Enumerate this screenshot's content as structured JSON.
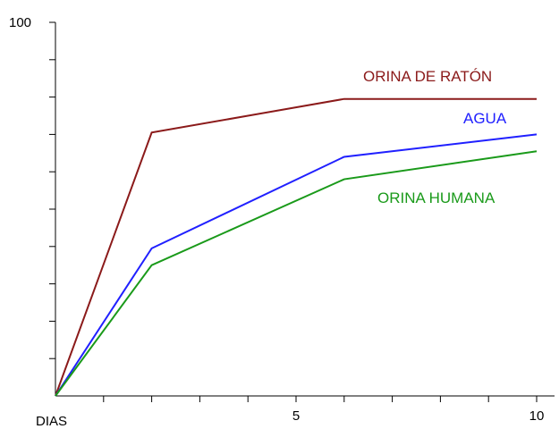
{
  "chart_data": {
    "type": "line",
    "title": "",
    "xlabel": "DIAS",
    "ylabel": "",
    "xlim": [
      0,
      10
    ],
    "ylim": [
      0,
      100
    ],
    "x_tick_labels": [
      {
        "x": 5,
        "label": "5"
      },
      {
        "x": 10,
        "label": "10"
      }
    ],
    "y_tick_labels": [
      {
        "y": 100,
        "label": "100"
      }
    ],
    "x_minor_ticks": [
      1,
      2,
      3,
      4,
      5,
      6,
      7,
      8,
      9,
      10
    ],
    "y_minor_ticks": [
      10,
      20,
      30,
      40,
      50,
      60,
      70,
      80,
      90,
      100
    ],
    "grid": false,
    "legend": "inline labels at right",
    "series": [
      {
        "name": "ORINA DE RATÓN",
        "color": "#8b1a1a",
        "points": [
          [
            0,
            0
          ],
          [
            2,
            70.5
          ],
          [
            6,
            79.5
          ],
          [
            10,
            79.5
          ]
        ]
      },
      {
        "name": "AGUA",
        "color": "#2020ff",
        "points": [
          [
            0,
            0
          ],
          [
            2,
            39.5
          ],
          [
            6,
            64
          ],
          [
            10,
            70
          ]
        ]
      },
      {
        "name": "ORINA HUMANA",
        "color": "#1a9a1a",
        "points": [
          [
            0,
            0
          ],
          [
            2,
            35
          ],
          [
            6,
            58
          ],
          [
            10,
            65.5
          ]
        ]
      }
    ]
  }
}
